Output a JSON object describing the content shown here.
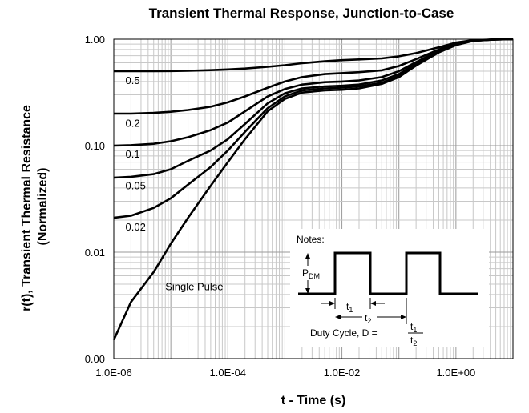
{
  "chart_data": {
    "type": "line",
    "title": "Transient Thermal Response, Junction-to-Case",
    "xlabel": "t - Time (s)",
    "ylabel_line1": "r(t), Transient Thermal Resistance",
    "ylabel_line2": "(Normalized)",
    "x_scale": "log",
    "y_scale": "log",
    "xlim": [
      1e-06,
      10
    ],
    "ylim": [
      0.001,
      1
    ],
    "x_ticks": [
      {
        "value": 1e-06,
        "label": "1.0E-06"
      },
      {
        "value": 0.0001,
        "label": "1.0E-04"
      },
      {
        "value": 0.01,
        "label": "1.0E-02"
      },
      {
        "value": 1,
        "label": "1.0E+00"
      }
    ],
    "y_ticks": [
      {
        "value": 0.001,
        "label": "0.00"
      },
      {
        "value": 0.01,
        "label": "0.01"
      },
      {
        "value": 0.1,
        "label": "0.10"
      },
      {
        "value": 1,
        "label": "1.00"
      }
    ],
    "grid": true,
    "x": [
      1e-06,
      2e-06,
      5e-06,
      1e-05,
      2e-05,
      5e-05,
      0.0001,
      0.0002,
      0.0005,
      0.001,
      0.002,
      0.005,
      0.01,
      0.02,
      0.05,
      0.1,
      0.2,
      0.5,
      1,
      2,
      5,
      10
    ],
    "series": [
      {
        "name": "0.5",
        "label_x": 1.6e-06,
        "label_y": 0.38,
        "values": [
          0.5,
          0.5,
          0.5,
          0.502,
          0.505,
          0.512,
          0.52,
          0.53,
          0.55,
          0.57,
          0.595,
          0.62,
          0.635,
          0.645,
          0.66,
          0.69,
          0.74,
          0.84,
          0.93,
          0.98,
          0.995,
          1.0
        ]
      },
      {
        "name": "0.2",
        "label_x": 1.6e-06,
        "label_y": 0.15,
        "values": [
          0.2,
          0.2,
          0.203,
          0.208,
          0.216,
          0.232,
          0.255,
          0.29,
          0.35,
          0.4,
          0.44,
          0.47,
          0.48,
          0.49,
          0.51,
          0.56,
          0.65,
          0.8,
          0.91,
          0.975,
          0.995,
          1.0
        ]
      },
      {
        "name": "0.1",
        "label_x": 1.6e-06,
        "label_y": 0.077,
        "values": [
          0.1,
          0.101,
          0.104,
          0.11,
          0.12,
          0.14,
          0.165,
          0.21,
          0.29,
          0.34,
          0.375,
          0.395,
          0.4,
          0.41,
          0.44,
          0.5,
          0.61,
          0.78,
          0.9,
          0.97,
          0.995,
          1.0
        ]
      },
      {
        "name": "0.05",
        "label_x": 1.6e-06,
        "label_y": 0.039,
        "values": [
          0.05,
          0.051,
          0.054,
          0.06,
          0.072,
          0.09,
          0.115,
          0.16,
          0.25,
          0.31,
          0.345,
          0.36,
          0.365,
          0.375,
          0.41,
          0.47,
          0.59,
          0.77,
          0.89,
          0.97,
          0.995,
          1.0
        ]
      },
      {
        "name": "0.02",
        "label_x": 1.6e-06,
        "label_y": 0.016,
        "values": [
          0.021,
          0.022,
          0.026,
          0.032,
          0.043,
          0.063,
          0.09,
          0.135,
          0.225,
          0.29,
          0.33,
          0.345,
          0.35,
          0.36,
          0.39,
          0.45,
          0.575,
          0.76,
          0.885,
          0.97,
          0.995,
          1.0
        ]
      },
      {
        "name": "Single Pulse",
        "label_x": 8e-06,
        "label_y": 0.0044,
        "values": [
          0.0015,
          0.0034,
          0.0065,
          0.012,
          0.021,
          0.042,
          0.07,
          0.115,
          0.21,
          0.275,
          0.315,
          0.33,
          0.335,
          0.345,
          0.38,
          0.44,
          0.565,
          0.75,
          0.88,
          0.965,
          0.995,
          1.0
        ]
      }
    ]
  },
  "notes": {
    "title": "Notes:",
    "pdm_main": "P",
    "pdm_sub": "DM",
    "t1_main": "t",
    "t1_sub": "1",
    "t2_main": "t",
    "t2_sub": "2",
    "duty_text": "Duty Cycle, D =",
    "frac_num_main": "t",
    "frac_num_sub": "1",
    "frac_den_main": "t",
    "frac_den_sub": "2"
  }
}
